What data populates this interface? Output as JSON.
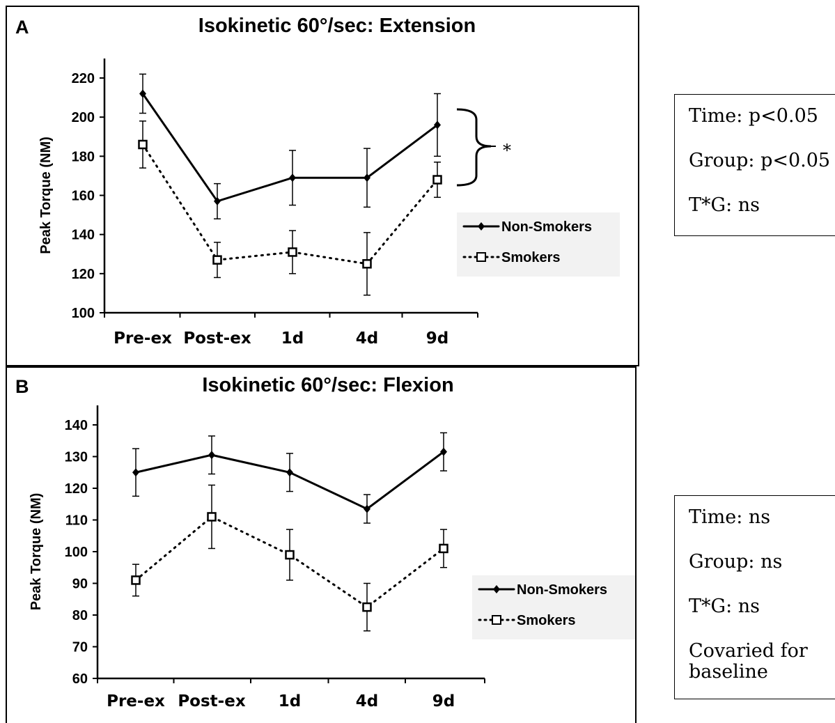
{
  "chart_data": [
    {
      "type": "line",
      "panel_letter": "A",
      "title": "Isokinetic 60°/sec: Extension",
      "xlabel": "",
      "ylabel": "Peak Torque (NM)",
      "categories": [
        "Pre-ex",
        "Post-ex",
        "1d",
        "4d",
        "9d"
      ],
      "ylim": [
        100,
        220
      ],
      "yticks": [
        100,
        120,
        140,
        160,
        180,
        200,
        220
      ],
      "series": [
        {
          "name": "Non-Smokers",
          "values": [
            212,
            157,
            169,
            169,
            196
          ],
          "error": [
            10,
            9,
            14,
            15,
            16
          ],
          "marker": "filled-diamond",
          "line": "solid"
        },
        {
          "name": "Smokers",
          "values": [
            186,
            127,
            131,
            125,
            168
          ],
          "error": [
            12,
            9,
            11,
            16,
            9
          ],
          "marker": "open-square",
          "line": "dotted"
        }
      ],
      "annotations": [
        "*"
      ],
      "legend_position": "right"
    },
    {
      "type": "line",
      "panel_letter": "B",
      "title": "Isokinetic 60°/sec: Flexion",
      "xlabel": "",
      "ylabel": "Peak Torque (NM)",
      "categories": [
        "Pre-ex",
        "Post-ex",
        "1d",
        "4d",
        "9d"
      ],
      "ylim": [
        60,
        140
      ],
      "yticks": [
        60,
        70,
        80,
        90,
        100,
        110,
        120,
        130,
        140
      ],
      "series": [
        {
          "name": "Non-Smokers",
          "values": [
            125,
            130.5,
            125,
            113.5,
            131.5
          ],
          "error": [
            7.5,
            6,
            6,
            4.5,
            6
          ],
          "marker": "filled-diamond",
          "line": "solid"
        },
        {
          "name": "Smokers",
          "values": [
            91,
            111,
            99,
            82.5,
            101
          ],
          "error": [
            5,
            10,
            8,
            7.5,
            6
          ],
          "marker": "open-square",
          "line": "dotted"
        }
      ],
      "legend_position": "right"
    }
  ],
  "stats": {
    "A": [
      "Time: p<0.05",
      "Group: p<0.05",
      "T*G: ns"
    ],
    "B": [
      "Time: ns",
      "Group: ns",
      "T*G: ns",
      "Covaried for baseline"
    ]
  }
}
